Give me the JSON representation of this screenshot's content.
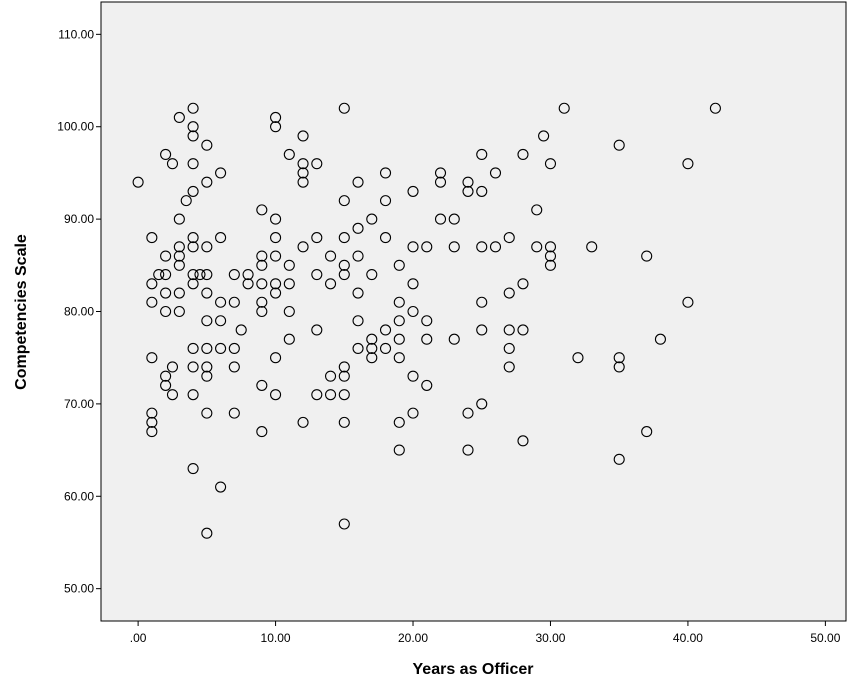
{
  "chart_data": {
    "type": "scatter",
    "title": "",
    "xlabel": "Years as Officer",
    "ylabel": "Competencies Scale",
    "xlim": [
      -2.7,
      51.5
    ],
    "ylim": [
      46.5,
      113.5
    ],
    "xticks": [
      0,
      10,
      20,
      30,
      40,
      50
    ],
    "xtick_labels": [
      ".00",
      "10.00",
      "20.00",
      "30.00",
      "40.00",
      "50.00"
    ],
    "yticks": [
      50,
      60,
      70,
      80,
      90,
      100,
      110
    ],
    "ytick_labels": [
      "50.00",
      "60.00",
      "70.00",
      "80.00",
      "90.00",
      "100.00",
      "110.00"
    ],
    "grid": false,
    "legend": "none",
    "colors": {
      "plot_background": "#f0f0f0",
      "marker_stroke": "#000000",
      "frame": "#000000"
    },
    "marker": "hollow-circle",
    "points": [
      [
        0,
        94
      ],
      [
        1,
        88
      ],
      [
        1,
        83
      ],
      [
        1,
        81
      ],
      [
        1,
        75
      ],
      [
        1,
        69
      ],
      [
        1,
        68
      ],
      [
        1,
        67
      ],
      [
        1.5,
        84
      ],
      [
        2,
        97
      ],
      [
        2,
        86
      ],
      [
        2,
        84
      ],
      [
        2,
        82
      ],
      [
        2,
        80
      ],
      [
        2,
        73
      ],
      [
        2,
        72
      ],
      [
        2.5,
        96
      ],
      [
        2.5,
        74
      ],
      [
        2.5,
        71
      ],
      [
        3,
        101
      ],
      [
        3,
        90
      ],
      [
        3,
        87
      ],
      [
        3,
        86
      ],
      [
        3,
        85
      ],
      [
        3,
        82
      ],
      [
        3,
        80
      ],
      [
        3.5,
        92
      ],
      [
        4,
        102
      ],
      [
        4,
        100
      ],
      [
        4,
        99
      ],
      [
        4,
        96
      ],
      [
        4,
        93
      ],
      [
        4,
        88
      ],
      [
        4,
        87
      ],
      [
        4,
        84
      ],
      [
        4,
        83
      ],
      [
        4,
        76
      ],
      [
        4,
        74
      ],
      [
        4,
        71
      ],
      [
        4,
        63
      ],
      [
        4.5,
        84
      ],
      [
        5,
        98
      ],
      [
        5,
        94
      ],
      [
        5,
        87
      ],
      [
        5,
        84
      ],
      [
        5,
        82
      ],
      [
        5,
        79
      ],
      [
        5,
        76
      ],
      [
        5,
        74
      ],
      [
        5,
        73
      ],
      [
        5,
        69
      ],
      [
        5,
        56
      ],
      [
        6,
        95
      ],
      [
        6,
        88
      ],
      [
        6,
        81
      ],
      [
        6,
        79
      ],
      [
        6,
        76
      ],
      [
        6,
        61
      ],
      [
        7,
        84
      ],
      [
        7,
        81
      ],
      [
        7,
        76
      ],
      [
        7,
        74
      ],
      [
        7,
        69
      ],
      [
        7.5,
        78
      ],
      [
        8,
        84
      ],
      [
        8,
        83
      ],
      [
        9,
        91
      ],
      [
        9,
        86
      ],
      [
        9,
        85
      ],
      [
        9,
        83
      ],
      [
        9,
        81
      ],
      [
        9,
        80
      ],
      [
        9,
        72
      ],
      [
        9,
        67
      ],
      [
        10,
        101
      ],
      [
        10,
        100
      ],
      [
        10,
        90
      ],
      [
        10,
        88
      ],
      [
        10,
        86
      ],
      [
        10,
        83
      ],
      [
        10,
        82
      ],
      [
        10,
        75
      ],
      [
        10,
        71
      ],
      [
        11,
        97
      ],
      [
        11,
        85
      ],
      [
        11,
        83
      ],
      [
        11,
        80
      ],
      [
        11,
        77
      ],
      [
        12,
        99
      ],
      [
        12,
        96
      ],
      [
        12,
        95
      ],
      [
        12,
        94
      ],
      [
        12,
        87
      ],
      [
        12,
        68
      ],
      [
        13,
        96
      ],
      [
        13,
        88
      ],
      [
        13,
        84
      ],
      [
        13,
        78
      ],
      [
        13,
        71
      ],
      [
        14,
        86
      ],
      [
        14,
        83
      ],
      [
        14,
        73
      ],
      [
        14,
        71
      ],
      [
        15,
        102
      ],
      [
        15,
        92
      ],
      [
        15,
        88
      ],
      [
        15,
        85
      ],
      [
        15,
        84
      ],
      [
        15,
        74
      ],
      [
        15,
        73
      ],
      [
        15,
        71
      ],
      [
        15,
        68
      ],
      [
        15,
        57
      ],
      [
        16,
        94
      ],
      [
        16,
        89
      ],
      [
        16,
        86
      ],
      [
        16,
        82
      ],
      [
        16,
        79
      ],
      [
        16,
        76
      ],
      [
        17,
        90
      ],
      [
        17,
        84
      ],
      [
        17,
        77
      ],
      [
        17,
        76
      ],
      [
        17,
        75
      ],
      [
        18,
        95
      ],
      [
        18,
        92
      ],
      [
        18,
        88
      ],
      [
        18,
        78
      ],
      [
        18,
        76
      ],
      [
        19,
        85
      ],
      [
        19,
        81
      ],
      [
        19,
        79
      ],
      [
        19,
        77
      ],
      [
        19,
        75
      ],
      [
        19,
        68
      ],
      [
        19,
        65
      ],
      [
        20,
        93
      ],
      [
        20,
        87
      ],
      [
        20,
        83
      ],
      [
        20,
        80
      ],
      [
        20,
        73
      ],
      [
        20,
        69
      ],
      [
        21,
        87
      ],
      [
        21,
        79
      ],
      [
        21,
        77
      ],
      [
        21,
        72
      ],
      [
        22,
        95
      ],
      [
        22,
        94
      ],
      [
        22,
        90
      ],
      [
        23,
        90
      ],
      [
        23,
        87
      ],
      [
        23,
        77
      ],
      [
        24,
        94
      ],
      [
        24,
        93
      ],
      [
        24,
        69
      ],
      [
        24,
        65
      ],
      [
        25,
        97
      ],
      [
        25,
        93
      ],
      [
        25,
        87
      ],
      [
        25,
        81
      ],
      [
        25,
        78
      ],
      [
        25,
        70
      ],
      [
        26,
        95
      ],
      [
        26,
        87
      ],
      [
        27,
        88
      ],
      [
        27,
        82
      ],
      [
        27,
        78
      ],
      [
        27,
        76
      ],
      [
        27,
        74
      ],
      [
        28,
        97
      ],
      [
        28,
        83
      ],
      [
        28,
        78
      ],
      [
        28,
        66
      ],
      [
        29,
        91
      ],
      [
        29,
        87
      ],
      [
        29.5,
        99
      ],
      [
        30,
        96
      ],
      [
        30,
        87
      ],
      [
        30,
        86
      ],
      [
        30,
        85
      ],
      [
        31,
        102
      ],
      [
        32,
        75
      ],
      [
        33,
        87
      ],
      [
        35,
        98
      ],
      [
        35,
        75
      ],
      [
        35,
        74
      ],
      [
        35,
        64
      ],
      [
        37,
        86
      ],
      [
        37,
        67
      ],
      [
        38,
        77
      ],
      [
        40,
        96
      ],
      [
        40,
        81
      ],
      [
        42,
        102
      ]
    ]
  }
}
